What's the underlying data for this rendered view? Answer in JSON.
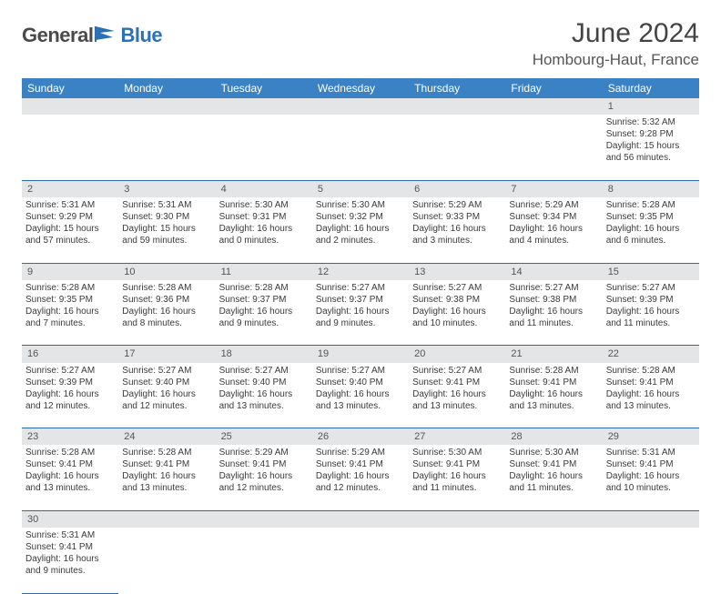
{
  "brand": {
    "part1": "General",
    "part2": "Blue"
  },
  "title": "June 2024",
  "location": "Hombourg-Haut, France",
  "colors": {
    "header_bg": "#3b82c4",
    "row_divider": "#2a6aa8",
    "daynum_bg": "#e4e5e6",
    "brand_blue": "#2a72b5"
  },
  "weekdays": [
    "Sunday",
    "Monday",
    "Tuesday",
    "Wednesday",
    "Thursday",
    "Friday",
    "Saturday"
  ],
  "weeks": [
    {
      "nums": [
        "",
        "",
        "",
        "",
        "",
        "",
        "1"
      ],
      "cells": [
        null,
        null,
        null,
        null,
        null,
        null,
        {
          "sunrise": "Sunrise: 5:32 AM",
          "sunset": "Sunset: 9:28 PM",
          "day1": "Daylight: 15 hours",
          "day2": "and 56 minutes."
        }
      ]
    },
    {
      "nums": [
        "2",
        "3",
        "4",
        "5",
        "6",
        "7",
        "8"
      ],
      "cells": [
        {
          "sunrise": "Sunrise: 5:31 AM",
          "sunset": "Sunset: 9:29 PM",
          "day1": "Daylight: 15 hours",
          "day2": "and 57 minutes."
        },
        {
          "sunrise": "Sunrise: 5:31 AM",
          "sunset": "Sunset: 9:30 PM",
          "day1": "Daylight: 15 hours",
          "day2": "and 59 minutes."
        },
        {
          "sunrise": "Sunrise: 5:30 AM",
          "sunset": "Sunset: 9:31 PM",
          "day1": "Daylight: 16 hours",
          "day2": "and 0 minutes."
        },
        {
          "sunrise": "Sunrise: 5:30 AM",
          "sunset": "Sunset: 9:32 PM",
          "day1": "Daylight: 16 hours",
          "day2": "and 2 minutes."
        },
        {
          "sunrise": "Sunrise: 5:29 AM",
          "sunset": "Sunset: 9:33 PM",
          "day1": "Daylight: 16 hours",
          "day2": "and 3 minutes."
        },
        {
          "sunrise": "Sunrise: 5:29 AM",
          "sunset": "Sunset: 9:34 PM",
          "day1": "Daylight: 16 hours",
          "day2": "and 4 minutes."
        },
        {
          "sunrise": "Sunrise: 5:28 AM",
          "sunset": "Sunset: 9:35 PM",
          "day1": "Daylight: 16 hours",
          "day2": "and 6 minutes."
        }
      ]
    },
    {
      "nums": [
        "9",
        "10",
        "11",
        "12",
        "13",
        "14",
        "15"
      ],
      "cells": [
        {
          "sunrise": "Sunrise: 5:28 AM",
          "sunset": "Sunset: 9:35 PM",
          "day1": "Daylight: 16 hours",
          "day2": "and 7 minutes."
        },
        {
          "sunrise": "Sunrise: 5:28 AM",
          "sunset": "Sunset: 9:36 PM",
          "day1": "Daylight: 16 hours",
          "day2": "and 8 minutes."
        },
        {
          "sunrise": "Sunrise: 5:28 AM",
          "sunset": "Sunset: 9:37 PM",
          "day1": "Daylight: 16 hours",
          "day2": "and 9 minutes."
        },
        {
          "sunrise": "Sunrise: 5:27 AM",
          "sunset": "Sunset: 9:37 PM",
          "day1": "Daylight: 16 hours",
          "day2": "and 9 minutes."
        },
        {
          "sunrise": "Sunrise: 5:27 AM",
          "sunset": "Sunset: 9:38 PM",
          "day1": "Daylight: 16 hours",
          "day2": "and 10 minutes."
        },
        {
          "sunrise": "Sunrise: 5:27 AM",
          "sunset": "Sunset: 9:38 PM",
          "day1": "Daylight: 16 hours",
          "day2": "and 11 minutes."
        },
        {
          "sunrise": "Sunrise: 5:27 AM",
          "sunset": "Sunset: 9:39 PM",
          "day1": "Daylight: 16 hours",
          "day2": "and 11 minutes."
        }
      ]
    },
    {
      "nums": [
        "16",
        "17",
        "18",
        "19",
        "20",
        "21",
        "22"
      ],
      "cells": [
        {
          "sunrise": "Sunrise: 5:27 AM",
          "sunset": "Sunset: 9:39 PM",
          "day1": "Daylight: 16 hours",
          "day2": "and 12 minutes."
        },
        {
          "sunrise": "Sunrise: 5:27 AM",
          "sunset": "Sunset: 9:40 PM",
          "day1": "Daylight: 16 hours",
          "day2": "and 12 minutes."
        },
        {
          "sunrise": "Sunrise: 5:27 AM",
          "sunset": "Sunset: 9:40 PM",
          "day1": "Daylight: 16 hours",
          "day2": "and 13 minutes."
        },
        {
          "sunrise": "Sunrise: 5:27 AM",
          "sunset": "Sunset: 9:40 PM",
          "day1": "Daylight: 16 hours",
          "day2": "and 13 minutes."
        },
        {
          "sunrise": "Sunrise: 5:27 AM",
          "sunset": "Sunset: 9:41 PM",
          "day1": "Daylight: 16 hours",
          "day2": "and 13 minutes."
        },
        {
          "sunrise": "Sunrise: 5:28 AM",
          "sunset": "Sunset: 9:41 PM",
          "day1": "Daylight: 16 hours",
          "day2": "and 13 minutes."
        },
        {
          "sunrise": "Sunrise: 5:28 AM",
          "sunset": "Sunset: 9:41 PM",
          "day1": "Daylight: 16 hours",
          "day2": "and 13 minutes."
        }
      ]
    },
    {
      "nums": [
        "23",
        "24",
        "25",
        "26",
        "27",
        "28",
        "29"
      ],
      "cells": [
        {
          "sunrise": "Sunrise: 5:28 AM",
          "sunset": "Sunset: 9:41 PM",
          "day1": "Daylight: 16 hours",
          "day2": "and 13 minutes."
        },
        {
          "sunrise": "Sunrise: 5:28 AM",
          "sunset": "Sunset: 9:41 PM",
          "day1": "Daylight: 16 hours",
          "day2": "and 13 minutes."
        },
        {
          "sunrise": "Sunrise: 5:29 AM",
          "sunset": "Sunset: 9:41 PM",
          "day1": "Daylight: 16 hours",
          "day2": "and 12 minutes."
        },
        {
          "sunrise": "Sunrise: 5:29 AM",
          "sunset": "Sunset: 9:41 PM",
          "day1": "Daylight: 16 hours",
          "day2": "and 12 minutes."
        },
        {
          "sunrise": "Sunrise: 5:30 AM",
          "sunset": "Sunset: 9:41 PM",
          "day1": "Daylight: 16 hours",
          "day2": "and 11 minutes."
        },
        {
          "sunrise": "Sunrise: 5:30 AM",
          "sunset": "Sunset: 9:41 PM",
          "day1": "Daylight: 16 hours",
          "day2": "and 11 minutes."
        },
        {
          "sunrise": "Sunrise: 5:31 AM",
          "sunset": "Sunset: 9:41 PM",
          "day1": "Daylight: 16 hours",
          "day2": "and 10 minutes."
        }
      ]
    },
    {
      "nums": [
        "30",
        "",
        "",
        "",
        "",
        "",
        ""
      ],
      "cells": [
        {
          "sunrise": "Sunrise: 5:31 AM",
          "sunset": "Sunset: 9:41 PM",
          "day1": "Daylight: 16 hours",
          "day2": "and 9 minutes."
        },
        null,
        null,
        null,
        null,
        null,
        null
      ]
    }
  ]
}
